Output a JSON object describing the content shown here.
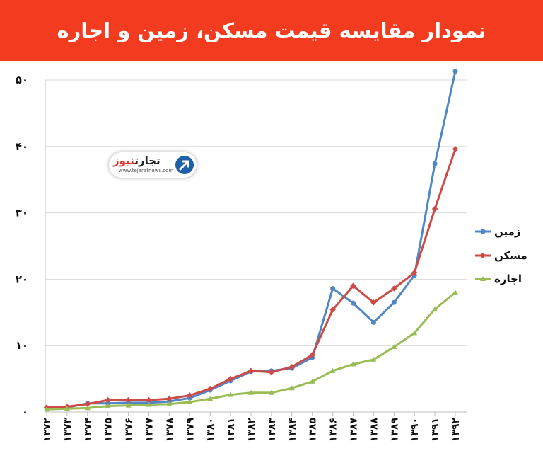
{
  "title": "نمودار مقایسه قیمت مسکن، زمین و اجاره",
  "logo": {
    "name_main": "تجارت",
    "name_accent": "نیوز",
    "url": "www.tejaratnews.com"
  },
  "colors": {
    "header": "#f23b1f",
    "land": "#4f86c6",
    "housing": "#cd4a45",
    "rent": "#9bbb55",
    "grid": "#d9d9d9"
  },
  "chart_data": {
    "type": "line",
    "categories": [
      "۱۳۷۲",
      "۱۳۷۳",
      "۱۳۷۴",
      "۱۳۷۵",
      "۱۳۷۶",
      "۱۳۷۷",
      "۱۳۷۸",
      "۱۳۷۹",
      "۱۳۸۰",
      "۱۳۸۱",
      "۱۳۸۲",
      "۱۳۸۳",
      "۱۳۸۴",
      "۱۳۸۵",
      "۱۳۸۶",
      "۱۳۸۷",
      "۱۳۸۸",
      "۱۳۸۹",
      "۱۳۹۰",
      "۱۳۹۱",
      "۱۳۹۲"
    ],
    "y_ticks": [
      "۰",
      "۱۰",
      "۲۰",
      "۳۰",
      "۴۰",
      "۵۰"
    ],
    "ylim": [
      0,
      50
    ],
    "series": [
      {
        "name": "زمین",
        "color": "#4f86c6",
        "values": [
          0.6,
          0.7,
          1.3,
          1.3,
          1.4,
          1.4,
          1.6,
          2.1,
          3.3,
          4.7,
          6.1,
          6.2,
          6.6,
          8.2,
          18.6,
          16.4,
          13.5,
          16.5,
          20.6,
          37.4,
          51.3
        ]
      },
      {
        "name": "مسکن",
        "color": "#cd4a45",
        "values": [
          0.7,
          0.8,
          1.2,
          1.8,
          1.8,
          1.8,
          2.0,
          2.5,
          3.5,
          5.0,
          6.2,
          6.0,
          6.8,
          8.6,
          15.4,
          19.0,
          16.5,
          18.6,
          21.0,
          30.6,
          39.6
        ]
      },
      {
        "name": "اجاره",
        "color": "#9bbb55",
        "values": [
          0.4,
          0.5,
          0.6,
          0.9,
          1.0,
          1.1,
          1.2,
          1.5,
          2.0,
          2.6,
          2.9,
          2.9,
          3.6,
          4.6,
          6.2,
          7.2,
          7.9,
          9.8,
          11.9,
          15.5,
          18.0
        ]
      }
    ],
    "legend_position": "right",
    "grid": true
  }
}
